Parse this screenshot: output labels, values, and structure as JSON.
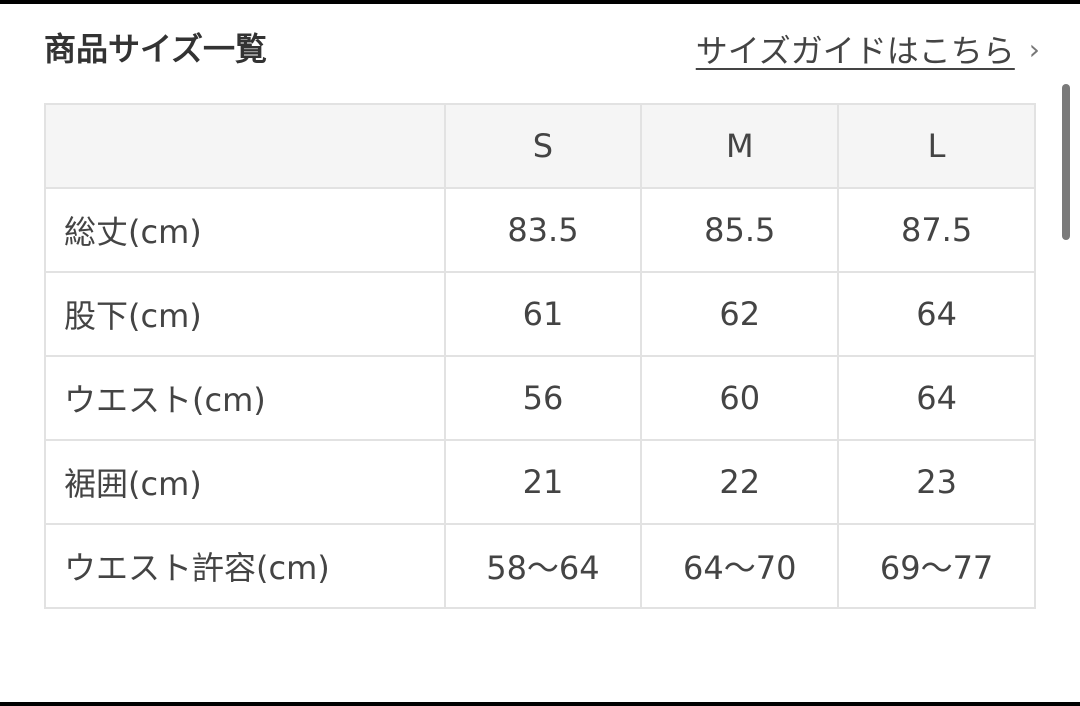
{
  "title": "商品サイズ一覧",
  "guide_link": "サイズガイドはこちら",
  "icons": {
    "guide_chevron": "chevron-right-icon"
  },
  "table": {
    "headers": [
      "",
      "S",
      "M",
      "L"
    ],
    "rows": [
      {
        "label": "総丈(cm)",
        "values": [
          "83.5",
          "85.5",
          "87.5"
        ]
      },
      {
        "label": "股下(cm)",
        "values": [
          "61",
          "62",
          "64"
        ]
      },
      {
        "label": "ウエスト(cm)",
        "values": [
          "56",
          "60",
          "64"
        ]
      },
      {
        "label": "裾囲(cm)",
        "values": [
          "21",
          "22",
          "23"
        ]
      },
      {
        "label": "ウエスト許容(cm)",
        "values": [
          "58〜64",
          "64〜70",
          "69〜77"
        ]
      }
    ]
  }
}
